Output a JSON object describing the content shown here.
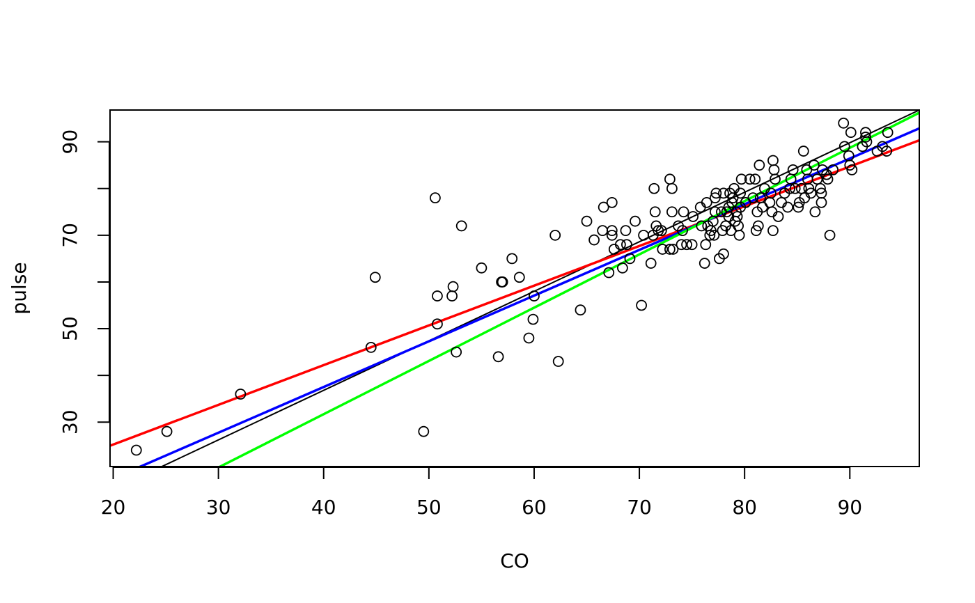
{
  "chart_data": {
    "type": "scatter",
    "title": "",
    "xlabel": "CO",
    "ylabel": "pulse",
    "xlim": [
      19.7,
      96.6
    ],
    "ylim": [
      20.5,
      96.8
    ],
    "grid": false,
    "legend": "none",
    "x_ticks": [
      20,
      30,
      40,
      50,
      60,
      70,
      80,
      90
    ],
    "y_ticks": [
      30,
      40,
      50,
      60,
      70,
      80,
      90
    ],
    "y_tick_labels": [
      {
        "value": 30,
        "label": "30"
      },
      {
        "value": 50,
        "label": "50"
      },
      {
        "value": 70,
        "label": "70"
      },
      {
        "value": 90,
        "label": "90"
      }
    ],
    "points": [
      [
        22.2,
        24
      ],
      [
        25.1,
        28
      ],
      [
        32.1,
        36
      ],
      [
        44.5,
        46
      ],
      [
        44.9,
        61
      ],
      [
        49.5,
        28
      ],
      [
        50.6,
        78
      ],
      [
        50.8,
        57
      ],
      [
        50.8,
        51
      ],
      [
        52.2,
        57
      ],
      [
        52.3,
        59
      ],
      [
        52.6,
        45
      ],
      [
        53.1,
        72
      ],
      [
        55.0,
        63
      ],
      [
        56.6,
        44
      ],
      [
        56.9,
        60
      ],
      [
        57.0,
        60
      ],
      [
        57.9,
        65
      ],
      [
        58.6,
        61
      ],
      [
        59.5,
        48
      ],
      [
        59.9,
        52
      ],
      [
        60.0,
        57
      ],
      [
        62.0,
        70
      ],
      [
        62.3,
        43
      ],
      [
        64.4,
        54
      ],
      [
        65.0,
        73
      ],
      [
        65.7,
        69
      ],
      [
        66.5,
        71
      ],
      [
        66.6,
        76
      ],
      [
        67.1,
        62
      ],
      [
        67.4,
        77
      ],
      [
        67.4,
        71
      ],
      [
        67.4,
        70
      ],
      [
        67.6,
        67
      ],
      [
        68.2,
        68
      ],
      [
        68.4,
        63
      ],
      [
        68.7,
        71
      ],
      [
        68.8,
        68
      ],
      [
        69.1,
        65
      ],
      [
        69.6,
        73
      ],
      [
        70.2,
        55
      ],
      [
        70.4,
        70
      ],
      [
        71.1,
        64
      ],
      [
        71.3,
        70
      ],
      [
        71.4,
        80
      ],
      [
        71.5,
        75
      ],
      [
        71.6,
        72
      ],
      [
        71.8,
        71
      ],
      [
        72.1,
        71
      ],
      [
        72.2,
        67
      ],
      [
        72.9,
        82
      ],
      [
        72.9,
        67
      ],
      [
        73.1,
        80
      ],
      [
        73.1,
        75
      ],
      [
        73.2,
        67
      ],
      [
        73.7,
        72
      ],
      [
        74.0,
        68
      ],
      [
        74.1,
        71
      ],
      [
        74.2,
        75
      ],
      [
        74.5,
        68
      ],
      [
        75.0,
        68
      ],
      [
        75.1,
        74
      ],
      [
        75.8,
        76
      ],
      [
        75.9,
        72
      ],
      [
        76.2,
        64
      ],
      [
        76.3,
        68
      ],
      [
        76.4,
        77
      ],
      [
        76.5,
        72
      ],
      [
        76.7,
        70
      ],
      [
        76.8,
        71
      ],
      [
        77.0,
        73
      ],
      [
        77.1,
        70
      ],
      [
        77.2,
        75
      ],
      [
        77.2,
        78
      ],
      [
        77.3,
        79
      ],
      [
        77.6,
        65
      ],
      [
        77.8,
        75
      ],
      [
        77.9,
        71
      ],
      [
        78.0,
        79
      ],
      [
        78.0,
        66
      ],
      [
        78.2,
        72
      ],
      [
        78.3,
        75
      ],
      [
        78.5,
        76
      ],
      [
        78.5,
        74
      ],
      [
        78.6,
        79
      ],
      [
        78.7,
        71
      ],
      [
        78.8,
        77
      ],
      [
        78.9,
        78
      ],
      [
        79.0,
        80
      ],
      [
        79.1,
        73
      ],
      [
        79.2,
        75
      ],
      [
        79.3,
        74
      ],
      [
        79.4,
        72
      ],
      [
        79.5,
        70
      ],
      [
        79.6,
        76
      ],
      [
        79.6,
        79
      ],
      [
        79.7,
        82
      ],
      [
        80.1,
        77
      ],
      [
        80.5,
        82
      ],
      [
        80.8,
        78
      ],
      [
        81.0,
        82
      ],
      [
        81.1,
        71
      ],
      [
        81.2,
        75
      ],
      [
        81.3,
        72
      ],
      [
        81.4,
        85
      ],
      [
        81.5,
        78
      ],
      [
        81.7,
        76
      ],
      [
        81.9,
        80
      ],
      [
        82.4,
        77
      ],
      [
        82.5,
        79
      ],
      [
        82.6,
        75
      ],
      [
        82.7,
        71
      ],
      [
        82.7,
        86
      ],
      [
        82.8,
        84
      ],
      [
        82.9,
        82
      ],
      [
        83.2,
        74
      ],
      [
        83.5,
        77
      ],
      [
        83.8,
        79
      ],
      [
        84.1,
        76
      ],
      [
        84.3,
        80
      ],
      [
        84.4,
        82
      ],
      [
        84.6,
        84
      ],
      [
        84.8,
        80
      ],
      [
        85.1,
        76
      ],
      [
        85.2,
        77
      ],
      [
        85.4,
        80
      ],
      [
        85.6,
        88
      ],
      [
        85.7,
        78
      ],
      [
        85.9,
        84
      ],
      [
        86.0,
        82
      ],
      [
        86.1,
        80
      ],
      [
        86.3,
        79
      ],
      [
        86.6,
        85
      ],
      [
        86.7,
        75
      ],
      [
        86.9,
        82
      ],
      [
        87.2,
        80
      ],
      [
        87.3,
        79
      ],
      [
        87.3,
        77
      ],
      [
        87.4,
        84
      ],
      [
        87.8,
        83
      ],
      [
        87.9,
        82
      ],
      [
        88.1,
        70
      ],
      [
        88.4,
        84
      ],
      [
        89.4,
        94
      ],
      [
        89.5,
        89
      ],
      [
        89.9,
        87
      ],
      [
        90.0,
        85
      ],
      [
        90.1,
        92
      ],
      [
        90.2,
        84
      ],
      [
        91.2,
        89
      ],
      [
        91.5,
        92
      ],
      [
        91.5,
        91
      ],
      [
        91.6,
        90
      ],
      [
        92.6,
        88
      ],
      [
        93.1,
        89
      ],
      [
        93.5,
        88
      ],
      [
        93.6,
        92
      ]
    ],
    "series": [
      {
        "color": "#000000",
        "line_width": 1,
        "intercept": -5.6,
        "slope": 1.06
      },
      {
        "color": "#ff0000",
        "line_width": 2,
        "intercept": 8.2,
        "slope": 0.85
      },
      {
        "color": "#0000ff",
        "line_width": 2,
        "intercept": -1.6,
        "slope": 0.978
      },
      {
        "color": "#00ff00",
        "line_width": 2,
        "intercept": -13.9,
        "slope": 1.14
      }
    ]
  }
}
